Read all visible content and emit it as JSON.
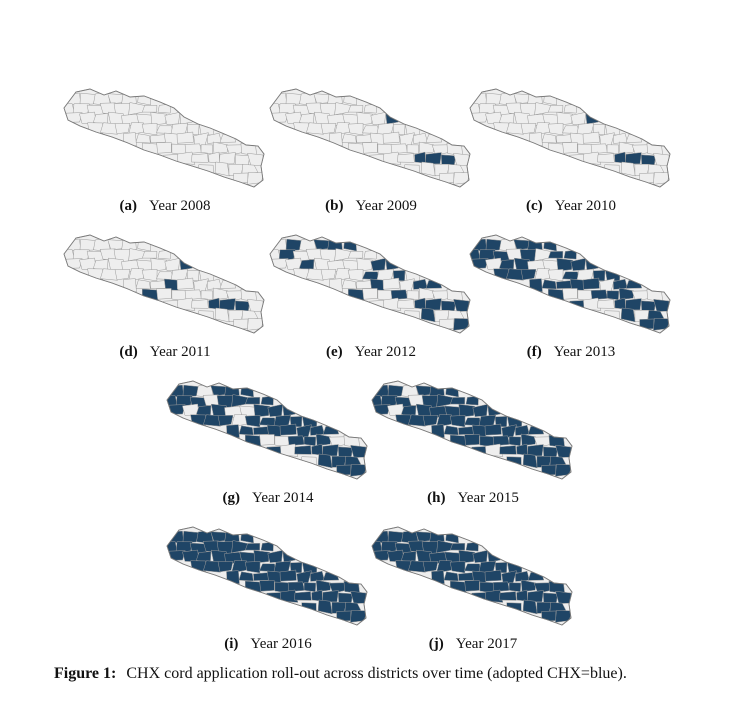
{
  "figure": {
    "label": "Figure 1:",
    "text": "CHX cord application roll-out across districts over time (adopted CHX=blue)."
  },
  "colors": {
    "adopted": "#1f4566",
    "not_adopted": "#eeeeee",
    "border": "#9a9a9a"
  },
  "panels": [
    {
      "label": "(a)",
      "caption": "Year 2008",
      "adopted_share": 0.0
    },
    {
      "label": "(b)",
      "caption": "Year 2009",
      "adopted_share": 0.04
    },
    {
      "label": "(c)",
      "caption": "Year 2010",
      "adopted_share": 0.04
    },
    {
      "label": "(d)",
      "caption": "Year 2011",
      "adopted_share": 0.12
    },
    {
      "label": "(e)",
      "caption": "Year 2012",
      "adopted_share": 0.35
    },
    {
      "label": "(f)",
      "caption": "Year 2013",
      "adopted_share": 0.6
    },
    {
      "label": "(g)",
      "caption": "Year 2014",
      "adopted_share": 0.78
    },
    {
      "label": "(h)",
      "caption": "Year 2015",
      "adopted_share": 0.93
    },
    {
      "label": "(i)",
      "caption": "Year 2016",
      "adopted_share": 0.99
    },
    {
      "label": "(j)",
      "caption": "Year 2017",
      "adopted_share": 1.0
    }
  ]
}
